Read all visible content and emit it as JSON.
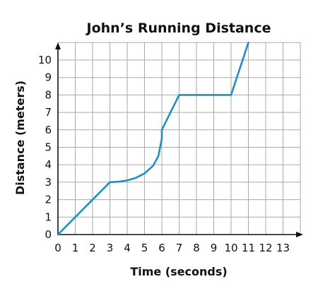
{
  "chart_data": {
    "type": "line",
    "title": "John’s Running Distance",
    "xlabel": "Time (seconds)",
    "ylabel": "Distance (meters)",
    "xlim": [
      0,
      14
    ],
    "ylim": [
      0,
      11
    ],
    "xticks": [
      0,
      1,
      2,
      3,
      4,
      5,
      6,
      7,
      8,
      9,
      10,
      11,
      12,
      13
    ],
    "yticks": [
      0,
      1,
      2,
      3,
      4,
      5,
      6,
      7,
      8,
      9,
      10
    ],
    "grid": true,
    "series": [
      {
        "color": "#1f8fc4",
        "points": [
          [
            0,
            0
          ],
          [
            3,
            3
          ],
          [
            3.5,
            3.03
          ],
          [
            4,
            3.1
          ],
          [
            4.5,
            3.25
          ],
          [
            5,
            3.5
          ],
          [
            5.5,
            3.95
          ],
          [
            5.8,
            4.5
          ],
          [
            6,
            5.5
          ],
          [
            6,
            6
          ],
          [
            7,
            8
          ],
          [
            10,
            8
          ],
          [
            11,
            11
          ]
        ]
      }
    ]
  }
}
